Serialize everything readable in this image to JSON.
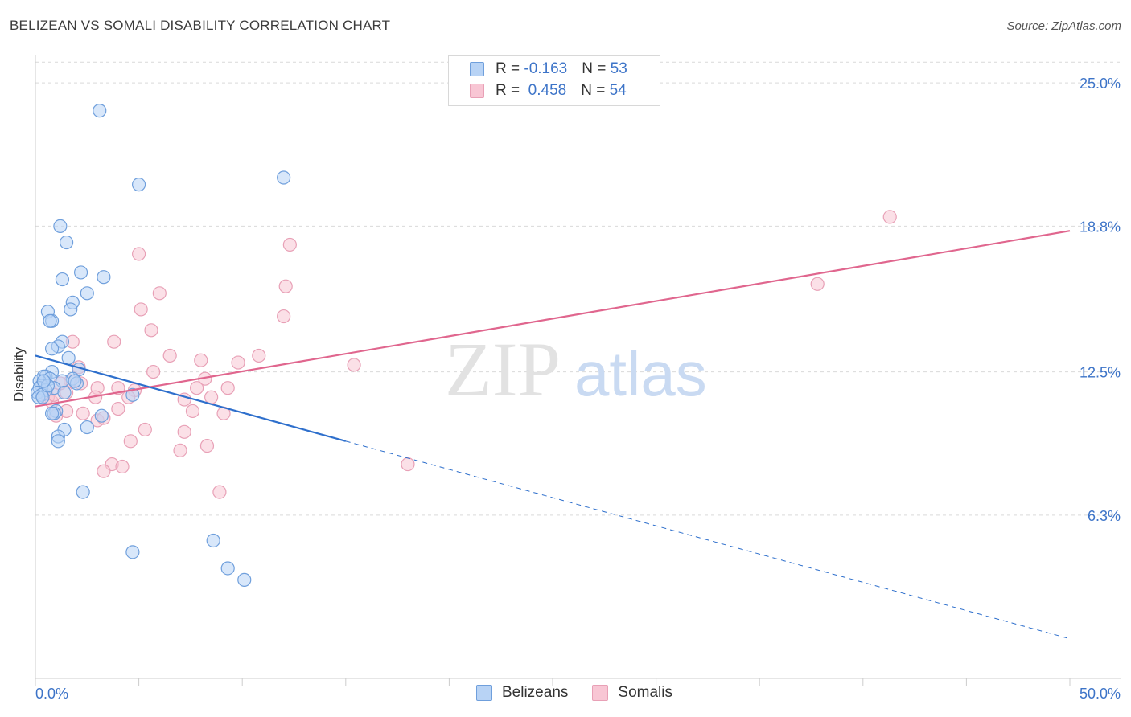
{
  "title": "BELIZEAN VS SOMALI DISABILITY CORRELATION CHART",
  "source": "Source: ZipAtlas.com",
  "watermark": {
    "zip": "ZIP",
    "atlas": "atlas"
  },
  "colors": {
    "blue_fill": "#b8d3f5",
    "blue_stroke": "#6f9fdc",
    "blue_line": "#2e6fcc",
    "pink_fill": "#f8c6d4",
    "pink_stroke": "#e8a0b6",
    "pink_line": "#e0668e",
    "axis_text": "#3d74c8",
    "grid": "#d9d9d9"
  },
  "legend": {
    "rows": [
      {
        "r_label": "R = ",
        "r_value": "-0.163",
        "n_label": "N = ",
        "n_value": "53"
      },
      {
        "r_label": "R = ",
        "r_value": " 0.458",
        "n_label": "N = ",
        "n_value": "54"
      }
    ]
  },
  "bottom_legend": {
    "series1": "Belizeans",
    "series2": "Somalis"
  },
  "chart_data": {
    "type": "scatter",
    "title": "BELIZEAN VS SOMALI DISABILITY CORRELATION CHART",
    "xlabel": "",
    "ylabel": "Disability",
    "xlim": [
      0,
      50
    ],
    "ylim": [
      0,
      26.5
    ],
    "x_tick_labels": [
      "0.0%",
      "50.0%"
    ],
    "y_ticks": [
      6.3,
      12.5,
      18.8,
      25.0
    ],
    "y_tick_labels": [
      "6.3%",
      "12.5%",
      "18.8%",
      "25.0%"
    ],
    "grid": true,
    "legend_position": "top-center",
    "series": [
      {
        "name": "Belizeans",
        "R": -0.163,
        "N": 53,
        "trend": {
          "x0": 0,
          "y0": 13.2,
          "x1": 15,
          "y1": 9.5,
          "dashed_to_x": 50,
          "dashed_to_y": 0.95
        },
        "points": [
          [
            3.1,
            23.8
          ],
          [
            5.0,
            20.6
          ],
          [
            12.0,
            20.9
          ],
          [
            1.2,
            18.8
          ],
          [
            1.5,
            18.1
          ],
          [
            2.2,
            16.8
          ],
          [
            3.3,
            16.6
          ],
          [
            1.3,
            16.5
          ],
          [
            2.5,
            15.9
          ],
          [
            1.8,
            15.5
          ],
          [
            1.7,
            15.2
          ],
          [
            0.6,
            15.1
          ],
          [
            0.8,
            14.7
          ],
          [
            0.7,
            14.7
          ],
          [
            1.3,
            13.8
          ],
          [
            1.1,
            13.6
          ],
          [
            0.8,
            13.5
          ],
          [
            1.6,
            13.1
          ],
          [
            2.1,
            12.6
          ],
          [
            0.8,
            12.5
          ],
          [
            0.5,
            12.3
          ],
          [
            0.4,
            12.3
          ],
          [
            0.7,
            12.2
          ],
          [
            0.2,
            12.1
          ],
          [
            1.8,
            12.2
          ],
          [
            1.3,
            12.1
          ],
          [
            2.0,
            12.0
          ],
          [
            0.3,
            11.9
          ],
          [
            0.9,
            11.8
          ],
          [
            0.2,
            11.8
          ],
          [
            0.5,
            11.7
          ],
          [
            1.4,
            11.6
          ],
          [
            0.1,
            11.6
          ],
          [
            0.3,
            11.5
          ],
          [
            0.15,
            11.4
          ],
          [
            0.35,
            11.4
          ],
          [
            4.7,
            11.5
          ],
          [
            1.0,
            10.8
          ],
          [
            0.9,
            10.7
          ],
          [
            3.2,
            10.6
          ],
          [
            1.4,
            10.0
          ],
          [
            2.5,
            10.1
          ],
          [
            1.1,
            9.7
          ],
          [
            1.1,
            9.5
          ],
          [
            2.3,
            7.3
          ],
          [
            4.7,
            4.7
          ],
          [
            8.6,
            5.2
          ],
          [
            9.3,
            4.0
          ],
          [
            10.1,
            3.5
          ],
          [
            0.6,
            11.9
          ],
          [
            0.4,
            12.1
          ],
          [
            0.8,
            10.7
          ],
          [
            1.9,
            12.1
          ]
        ]
      },
      {
        "name": "Somalis",
        "R": 0.458,
        "N": 54,
        "trend": {
          "x0": 0,
          "y0": 11.0,
          "x1": 50,
          "y1": 18.6
        },
        "points": [
          [
            41.3,
            19.2
          ],
          [
            12.3,
            18.0
          ],
          [
            5.0,
            17.6
          ],
          [
            37.8,
            16.3
          ],
          [
            12.1,
            16.2
          ],
          [
            6.0,
            15.9
          ],
          [
            5.1,
            15.2
          ],
          [
            12.0,
            14.9
          ],
          [
            5.6,
            14.3
          ],
          [
            3.8,
            13.8
          ],
          [
            1.8,
            13.8
          ],
          [
            10.8,
            13.2
          ],
          [
            6.5,
            13.2
          ],
          [
            8.0,
            13.0
          ],
          [
            9.8,
            12.9
          ],
          [
            15.4,
            12.8
          ],
          [
            2.1,
            12.7
          ],
          [
            5.7,
            12.5
          ],
          [
            8.2,
            12.2
          ],
          [
            1.7,
            12.1
          ],
          [
            9.3,
            11.8
          ],
          [
            3.0,
            11.8
          ],
          [
            4.0,
            11.8
          ],
          [
            7.8,
            11.8
          ],
          [
            1.5,
            11.6
          ],
          [
            4.8,
            11.7
          ],
          [
            0.4,
            11.6
          ],
          [
            4.5,
            11.4
          ],
          [
            2.9,
            11.4
          ],
          [
            8.5,
            11.4
          ],
          [
            0.8,
            11.2
          ],
          [
            7.2,
            11.3
          ],
          [
            4.0,
            10.9
          ],
          [
            7.6,
            10.8
          ],
          [
            1.5,
            10.8
          ],
          [
            2.3,
            10.7
          ],
          [
            9.1,
            10.7
          ],
          [
            1.0,
            10.6
          ],
          [
            3.0,
            10.4
          ],
          [
            3.3,
            10.5
          ],
          [
            5.3,
            10.0
          ],
          [
            7.2,
            9.9
          ],
          [
            0.6,
            11.4
          ],
          [
            0.9,
            11.5
          ],
          [
            4.6,
            9.5
          ],
          [
            8.3,
            9.3
          ],
          [
            7.0,
            9.1
          ],
          [
            3.7,
            8.5
          ],
          [
            4.2,
            8.4
          ],
          [
            3.3,
            8.2
          ],
          [
            18.0,
            8.5
          ],
          [
            8.9,
            7.3
          ],
          [
            1.2,
            12.0
          ],
          [
            2.2,
            12.0
          ]
        ]
      }
    ]
  }
}
